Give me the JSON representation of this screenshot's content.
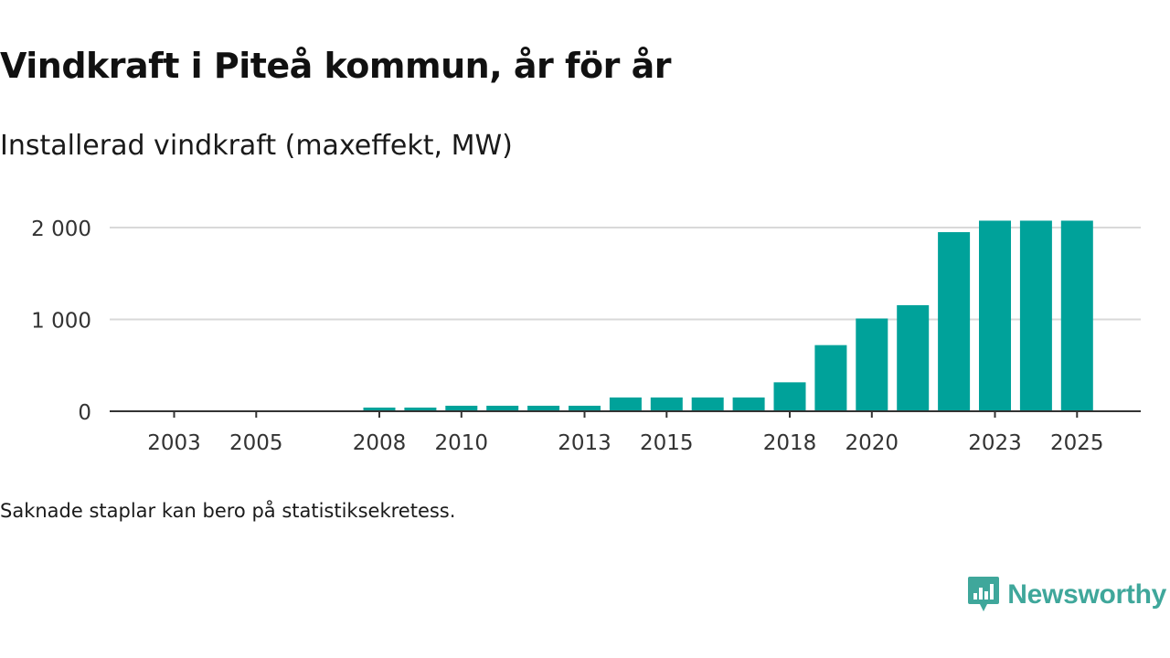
{
  "title": "Vindkraft i Piteå kommun, år för år",
  "subtitle": "Installerad vindkraft (maxeffekt, MW)",
  "footnote": "Saknade staplar kan bero på statistiksekretess.",
  "brand": {
    "name": "Newsworthy",
    "icon": "newsworthy-logo-icon",
    "color": "#3fa79b"
  },
  "colors": {
    "bar": "#00a29a",
    "grid": "#d9d9d9",
    "axis": "#333333"
  },
  "chart_data": {
    "type": "bar",
    "title": "Vindkraft i Piteå kommun, år för år",
    "ylabel": "Installerad vindkraft (maxeffekt, MW)",
    "xlabel": "",
    "categories": [
      "2003",
      "2004",
      "2005",
      "2006",
      "2007",
      "2008",
      "2009",
      "2010",
      "2011",
      "2012",
      "2013",
      "2014",
      "2015",
      "2016",
      "2017",
      "2018",
      "2019",
      "2020",
      "2021",
      "2022",
      "2023",
      "2024",
      "2025"
    ],
    "values": [
      null,
      null,
      null,
      null,
      null,
      40,
      40,
      60,
      60,
      60,
      60,
      150,
      150,
      150,
      150,
      315,
      720,
      1010,
      1155,
      1950,
      2075,
      2075,
      2075
    ],
    "ylim": [
      0,
      2000
    ],
    "yticks": [
      0,
      1000,
      2000
    ],
    "ytick_labels": [
      "0",
      "1 000",
      "2 000"
    ],
    "xtick_labels": [
      "2003",
      "2005",
      "2008",
      "2010",
      "2013",
      "2015",
      "2018",
      "2020",
      "2023",
      "2025"
    ],
    "grid": true,
    "legend": "none"
  }
}
